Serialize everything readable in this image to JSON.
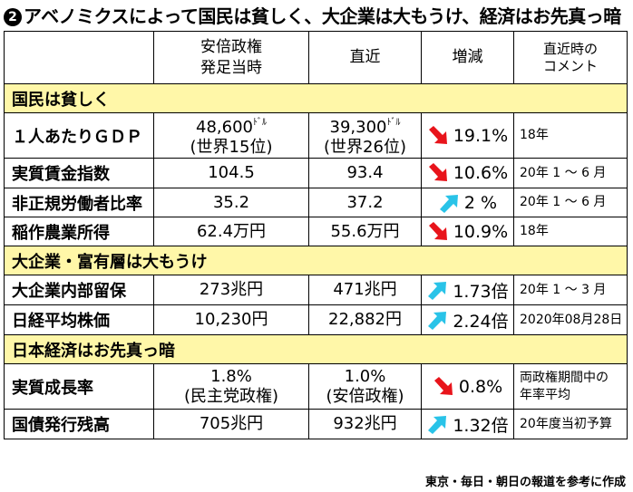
{
  "title": {
    "badge": "❷",
    "text": "アベノミクスによって国民は貧しく、大企業は大もうけ、経済はお先真っ暗"
  },
  "header": {
    "col1": "安倍政権発足当時",
    "col1_line1": "安倍政権",
    "col1_line2": "発足当時",
    "col2": "直近",
    "col3": "増減",
    "col4_line1": "直近時の",
    "col4_line2": "コメント"
  },
  "sections": [
    {
      "title": "国民は貧しく",
      "rows": [
        {
          "name": "１人あたりＧＤＰ",
          "start_main": "48,600",
          "start_unit": "ﾄﾞﾙ",
          "start_sub": "(世界15位)",
          "now_main": "39,300",
          "now_unit": "ﾄﾞﾙ",
          "now_sub": "(世界26位)",
          "change": "19.1%",
          "direction": "down",
          "comment": "18年"
        },
        {
          "name": "実質賃金指数",
          "start": "104.5",
          "now": "93.4",
          "change": "10.6%",
          "direction": "down",
          "comment": "20年 1 〜 6 月"
        },
        {
          "name": "非正規労働者比率",
          "start": "35.2",
          "now": "37.2",
          "change": "2 %",
          "direction": "up",
          "comment": "20年 1 〜 6 月"
        },
        {
          "name": "稲作農業所得",
          "start": "62.4万円",
          "now": "55.6万円",
          "change": "10.9%",
          "direction": "down",
          "comment": "18年"
        }
      ]
    },
    {
      "title": "大企業・富有層は大もうけ",
      "rows": [
        {
          "name": "大企業内部留保",
          "start": "273兆円",
          "now": "471兆円",
          "change": "1.73倍",
          "direction": "up",
          "comment": "20年 1 〜 3 月"
        },
        {
          "name": "日経平均株価",
          "start": "10,230円",
          "now": "22,882円",
          "change": "2.24倍",
          "direction": "up",
          "comment": "2020年08月28日"
        }
      ]
    },
    {
      "title": "日本経済はお先真っ暗",
      "rows": [
        {
          "name": "実質成長率",
          "start_main": "1.8%",
          "start_sub": "(民主党政権)",
          "now_main": "1.0%",
          "now_sub": "(安倍政権)",
          "change": "0.8%",
          "direction": "down",
          "comment_line1": "両政権期間中の",
          "comment_line2": "年率平均"
        },
        {
          "name": "国債発行残高",
          "start": "705兆円",
          "now": "932兆円",
          "change": "1.32倍",
          "direction": "up",
          "comment": "20年度当初予算"
        }
      ]
    }
  ],
  "credit": "東京・毎日・朝日の報道を参考に作成",
  "colors": {
    "section_bg": "#fff7a8",
    "down_arrow": "#e8141b",
    "up_arrow": "#29c3e8"
  },
  "icons": {
    "down": "arrow-down-right-icon",
    "up": "arrow-up-right-icon"
  }
}
